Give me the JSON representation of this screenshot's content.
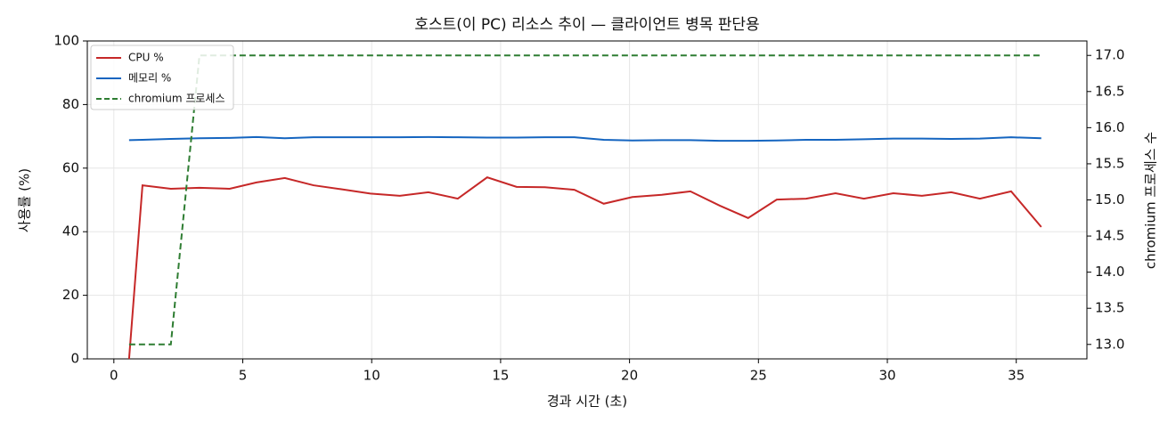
{
  "chart_data": {
    "type": "line",
    "title": "호스트(이 PC) 리소스 추이 — 클라이언트 병목 판단용",
    "x_label": "경과 시간 (초)",
    "y_label": "사용률 (%)",
    "y2_label": "chromium 프로세스 수",
    "x": [
      0.59,
      1.11,
      2.21,
      3.32,
      4.49,
      5.53,
      6.63,
      7.74,
      8.88,
      9.95,
      11.09,
      12.2,
      13.34,
      14.48,
      15.62,
      16.72,
      17.86,
      19.0,
      20.11,
      21.25,
      22.36,
      23.5,
      24.6,
      25.71,
      26.85,
      27.99,
      29.09,
      30.23,
      31.34,
      32.48,
      33.59,
      34.8,
      35.97
    ],
    "series": [
      {
        "name": "CPU %",
        "color": "#c62828",
        "axis": "y",
        "linestyle": "solid",
        "values": [
          0,
          54.6,
          53.5,
          53.8,
          53.5,
          55.5,
          56.9,
          54.6,
          53.3,
          52.0,
          51.3,
          52.4,
          50.4,
          57.1,
          54.1,
          54.0,
          53.2,
          48.8,
          50.9,
          51.6,
          52.7,
          48.2,
          44.3,
          50.1,
          50.4,
          52.1,
          50.4,
          52.1,
          51.3,
          52.4,
          50.4,
          52.7,
          41.5
        ]
      },
      {
        "name": "메모리 %",
        "color": "#1565c0",
        "axis": "y",
        "linestyle": "solid",
        "values": [
          68.8,
          68.9,
          69.2,
          69.4,
          69.5,
          69.8,
          69.4,
          69.7,
          69.7,
          69.7,
          69.7,
          69.8,
          69.7,
          69.6,
          69.6,
          69.7,
          69.7,
          68.9,
          68.7,
          68.8,
          68.8,
          68.6,
          68.6,
          68.7,
          68.9,
          68.9,
          69.1,
          69.3,
          69.3,
          69.2,
          69.3,
          69.7,
          69.4
        ]
      },
      {
        "name": "chromium 프로세스",
        "color": "#2e7d32",
        "axis": "y2",
        "linestyle": "dashed",
        "values": [
          13,
          13,
          13,
          17,
          17,
          17,
          17,
          17,
          17,
          17,
          17,
          17,
          17,
          17,
          17,
          17,
          17,
          17,
          17,
          17,
          17,
          17,
          17,
          17,
          17,
          17,
          17,
          17,
          17,
          17,
          17,
          17,
          17
        ]
      }
    ],
    "xlim": [
      -1.03,
      37.74
    ],
    "xticks": [
      0,
      5,
      10,
      15,
      20,
      25,
      30,
      35
    ],
    "ylim": [
      0,
      100
    ],
    "yticks": [
      0,
      20,
      40,
      60,
      80,
      100
    ],
    "y2lim": [
      12.8,
      17.2
    ],
    "y2ticks": [
      {
        "value": 13,
        "label": "13.0"
      },
      {
        "value": 13.5,
        "label": "13.5"
      },
      {
        "value": 14,
        "label": "14.0"
      },
      {
        "value": 14.5,
        "label": "14.5"
      },
      {
        "value": 15,
        "label": "15.0"
      },
      {
        "value": 15.5,
        "label": "15.5"
      },
      {
        "value": 16,
        "label": "16.0"
      },
      {
        "value": 16.5,
        "label": "16.5"
      },
      {
        "value": 17,
        "label": "17.0"
      }
    ],
    "grid": true,
    "legend": "upper-left"
  }
}
